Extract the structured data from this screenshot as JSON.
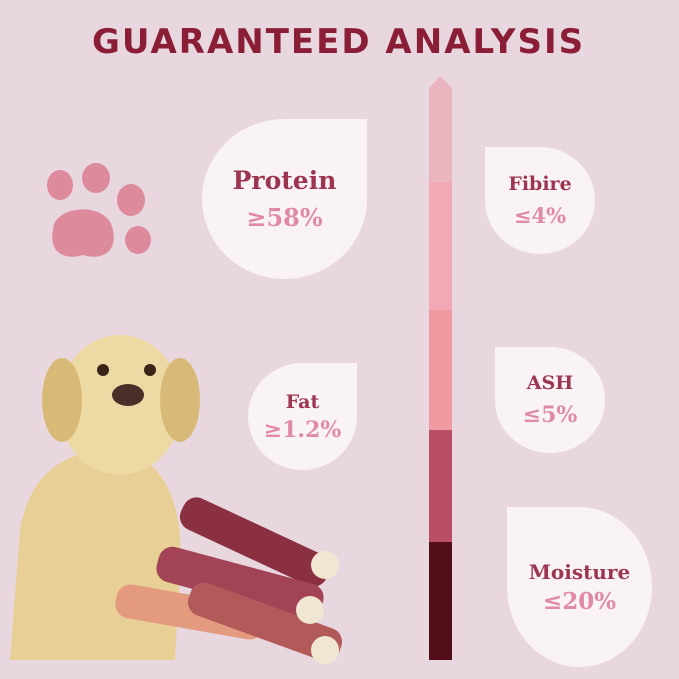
{
  "title": "GUARANTEED ANALYSIS",
  "nutrients": [
    {
      "label": "Protein",
      "value": "≥58%"
    },
    {
      "label": "Fibire",
      "value": "≤4%"
    },
    {
      "label": "Fat",
      "value": "≥1.2%"
    },
    {
      "label": "ASH",
      "value": "≤5%"
    },
    {
      "label": "Moisture",
      "value": "≤20%"
    }
  ],
  "colors": {
    "background": "#e9d7df",
    "title": "#8a1e36",
    "label": "#9c3550",
    "value": "#e08aa6",
    "scale": [
      "#ebb5c0",
      "#f2a9b5",
      "#ee9aa0",
      "#b84f66",
      "#520f1a"
    ]
  }
}
